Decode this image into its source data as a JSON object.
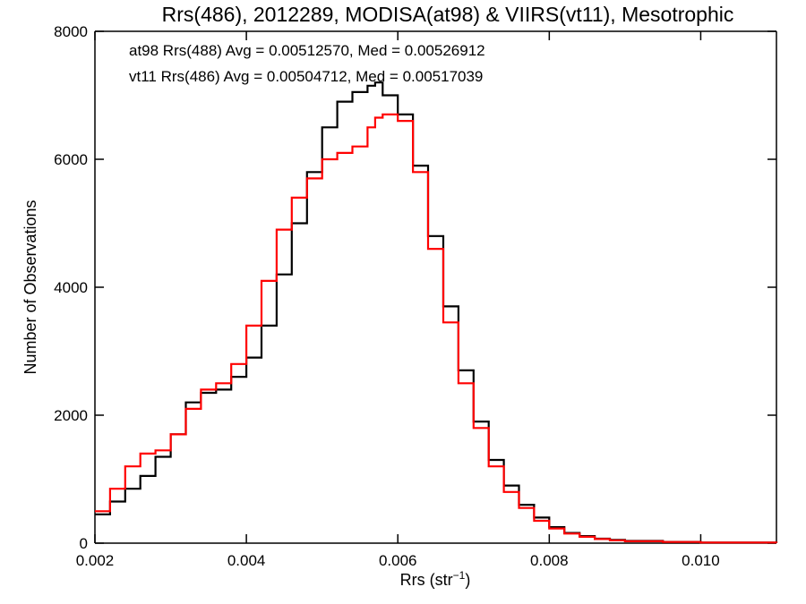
{
  "chart_data": {
    "type": "line",
    "title": "Rrs(486), 2012289, MODISA(at98) & VIIRS(vt11), Mesotrophic",
    "xlabel": "Rrs (str",
    "xlabel_superscript": "−1",
    "xlabel_close": ")",
    "ylabel": "Number of Observations",
    "xlim": [
      0.002,
      0.011
    ],
    "ylim": [
      0,
      8000
    ],
    "x_ticks": [
      0.002,
      0.004,
      0.006,
      0.008,
      0.01
    ],
    "x_tick_labels": [
      "0.002",
      "0.004",
      "0.006",
      "0.008",
      "0.010"
    ],
    "y_ticks": [
      0,
      2000,
      4000,
      6000,
      8000
    ],
    "y_tick_labels": [
      "0",
      "2000",
      "4000",
      "6000",
      "8000"
    ],
    "grid": false,
    "legend_position": "top-left",
    "series": [
      {
        "name": "at98 Rrs(488) Avg = 0.00512570, Med = 0.00526912",
        "color": "#000000",
        "x": [
          0.002,
          0.0022,
          0.0024,
          0.0026,
          0.0028,
          0.003,
          0.0032,
          0.0034,
          0.0036,
          0.0038,
          0.004,
          0.0042,
          0.0044,
          0.0046,
          0.0048,
          0.005,
          0.0052,
          0.0054,
          0.0056,
          0.0057,
          0.0058,
          0.006,
          0.0062,
          0.0064,
          0.0066,
          0.0068,
          0.007,
          0.0072,
          0.0074,
          0.0076,
          0.0078,
          0.008,
          0.0082,
          0.0084,
          0.0086,
          0.0088,
          0.009,
          0.0095,
          0.01,
          0.011
        ],
        "values": [
          450,
          650,
          850,
          1050,
          1350,
          1700,
          2200,
          2350,
          2400,
          2600,
          2900,
          3400,
          4200,
          5000,
          5800,
          6500,
          6900,
          7050,
          7150,
          7200,
          7000,
          6700,
          5900,
          4800,
          3700,
          2700,
          1900,
          1300,
          900,
          600,
          400,
          250,
          160,
          110,
          70,
          50,
          35,
          20,
          10,
          5
        ]
      },
      {
        "name": "vt11 Rrs(486) Avg = 0.00504712, Med = 0.00517039",
        "color": "#ff0000",
        "x": [
          0.002,
          0.0022,
          0.0024,
          0.0026,
          0.0028,
          0.003,
          0.0032,
          0.0034,
          0.0036,
          0.0038,
          0.004,
          0.0042,
          0.0044,
          0.0046,
          0.0048,
          0.005,
          0.0052,
          0.0054,
          0.0056,
          0.0057,
          0.0058,
          0.006,
          0.0062,
          0.0064,
          0.0066,
          0.0068,
          0.007,
          0.0072,
          0.0074,
          0.0076,
          0.0078,
          0.008,
          0.0082,
          0.0084,
          0.0086,
          0.0088,
          0.009,
          0.0095,
          0.01,
          0.011
        ],
        "values": [
          500,
          850,
          1200,
          1400,
          1450,
          1700,
          2100,
          2400,
          2500,
          2800,
          3400,
          4100,
          4900,
          5400,
          5700,
          6000,
          6100,
          6200,
          6500,
          6650,
          6700,
          6600,
          5800,
          4600,
          3450,
          2500,
          1800,
          1200,
          800,
          550,
          350,
          230,
          150,
          100,
          65,
          45,
          30,
          18,
          10,
          5
        ]
      }
    ]
  }
}
